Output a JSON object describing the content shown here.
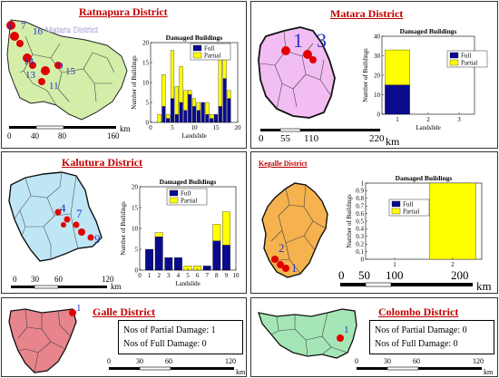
{
  "colors": {
    "title": "#c00000",
    "full": "#0a0a8c",
    "partial": "#ffff00",
    "damage_marker": "#e00000",
    "ratnapura_fill": "#d4eeaa",
    "matara_fill": "#f2bdf2",
    "kalutara_fill": "#bfe6f5",
    "kegalle_fill": "#f5b24f",
    "galle_fill": "#e8848c",
    "colombo_fill": "#a5e6b6"
  },
  "ratnapura": {
    "title": "Ratnapura District",
    "point_labels": [
      "4",
      "7",
      "16",
      "18",
      "9",
      "13",
      "15",
      "11"
    ],
    "overlay_text": "Matara District",
    "scale_ticks": [
      "0",
      "40",
      "80",
      "160"
    ],
    "scale_unit": "km"
  },
  "matara": {
    "title": "Matara District",
    "point_labels": [
      "1",
      "3"
    ],
    "scale_ticks": [
      "0",
      "55",
      "110",
      "220"
    ],
    "scale_unit": "km"
  },
  "kalutara": {
    "title": "Kalutura District",
    "point_labels": [
      "4",
      "7",
      "9"
    ],
    "scale_ticks": [
      "0",
      "30",
      "60",
      "120"
    ],
    "scale_unit": "km"
  },
  "kegalle": {
    "title": "Kegalle District",
    "point_labels": [
      "2",
      "1"
    ],
    "scale_ticks": [
      "0",
      "50",
      "100",
      "200"
    ],
    "scale_unit": "km"
  },
  "galle": {
    "title": "Galle District",
    "point_labels": [
      "1"
    ],
    "info_partial": "Nos of Partial Damage: 1",
    "info_full": "Nos of Full Damage: 0",
    "scale_ticks": [
      "0",
      "30",
      "60",
      "120"
    ],
    "scale_unit": "km"
  },
  "colombo": {
    "title": "Colombo District",
    "point_labels": [
      "1"
    ],
    "info_partial": "Nos of Partial Damage: 0",
    "info_full": "Nos of Full Damage: 0",
    "scale_ticks": [
      "0",
      "30",
      "60",
      "120"
    ],
    "scale_unit": "km"
  },
  "chart_data": [
    {
      "type": "bar",
      "stacked": true,
      "title": "Damaged Buildings",
      "xlabel": "Landslide",
      "ylabel": "Number of Buildings",
      "legend": [
        "Full",
        "Partial"
      ],
      "legend_position": "top",
      "xlim": [
        0,
        20
      ],
      "ylim": [
        0,
        20
      ],
      "xticks": [
        0,
        5,
        10,
        15,
        20
      ],
      "yticks": [
        0,
        5,
        10,
        15,
        20
      ],
      "categories": [
        1,
        2,
        3,
        4,
        5,
        6,
        7,
        8,
        9,
        10,
        11,
        12,
        13,
        14,
        15,
        16,
        17,
        18
      ],
      "series": [
        {
          "name": "Full",
          "values": [
            0,
            0,
            4,
            1,
            6,
            2,
            5,
            3,
            7,
            4,
            3,
            5,
            2,
            1,
            2,
            4,
            11,
            6
          ]
        },
        {
          "name": "Partial",
          "values": [
            0,
            2,
            8,
            1,
            12,
            7,
            9,
            5,
            1,
            2,
            2,
            0,
            3,
            1,
            0,
            13,
            6,
            2
          ]
        }
      ]
    },
    {
      "type": "bar",
      "stacked": true,
      "title": "Damaged Buildings",
      "xlabel": "Landslide",
      "ylabel": "Number of Buildings",
      "legend": [
        "Full",
        "Partial"
      ],
      "legend_position": "top-right",
      "xlim": [
        0.5,
        3.5
      ],
      "ylim": [
        0,
        40
      ],
      "xticks": [
        1,
        2,
        3
      ],
      "yticks": [
        0,
        10,
        20,
        30,
        40
      ],
      "categories": [
        1,
        2,
        3
      ],
      "series": [
        {
          "name": "Full",
          "values": [
            15,
            0,
            0
          ]
        },
        {
          "name": "Partial",
          "values": [
            18,
            0,
            0
          ]
        }
      ]
    },
    {
      "type": "bar",
      "stacked": true,
      "title": "Damaged Buildings",
      "xlabel": "Landslide",
      "ylabel": "Number of Buildings",
      "legend": [
        "Full",
        "Partial"
      ],
      "legend_position": "top",
      "xlim": [
        0,
        10
      ],
      "ylim": [
        0,
        20
      ],
      "xticks": [
        0,
        1,
        2,
        3,
        4,
        5,
        6,
        7,
        8,
        9,
        10
      ],
      "yticks": [
        0,
        5,
        10,
        15,
        20
      ],
      "categories": [
        1,
        2,
        3,
        4,
        5,
        6,
        7,
        8,
        9
      ],
      "series": [
        {
          "name": "Full",
          "values": [
            5,
            8,
            3,
            3,
            0,
            0,
            1,
            7,
            6
          ]
        },
        {
          "name": "Partial",
          "values": [
            0,
            1,
            0,
            0,
            1,
            1,
            0,
            4,
            8
          ]
        }
      ]
    },
    {
      "type": "bar",
      "stacked": true,
      "title": "Damaged Buildings",
      "xlabel": "",
      "ylabel": "Number of Buildings",
      "legend": [
        "Full",
        "Partial"
      ],
      "legend_position": "top-left",
      "xlim": [
        0.5,
        2.5
      ],
      "ylim": [
        0,
        1
      ],
      "xticks": [
        1,
        2
      ],
      "yticks": [
        0,
        0.1,
        0.2,
        0.3,
        0.4,
        0.5,
        0.6,
        0.7,
        0.8,
        0.9,
        1
      ],
      "categories": [
        1,
        2
      ],
      "series": [
        {
          "name": "Full",
          "values": [
            0,
            0
          ]
        },
        {
          "name": "Partial",
          "values": [
            0,
            1
          ]
        }
      ]
    }
  ]
}
